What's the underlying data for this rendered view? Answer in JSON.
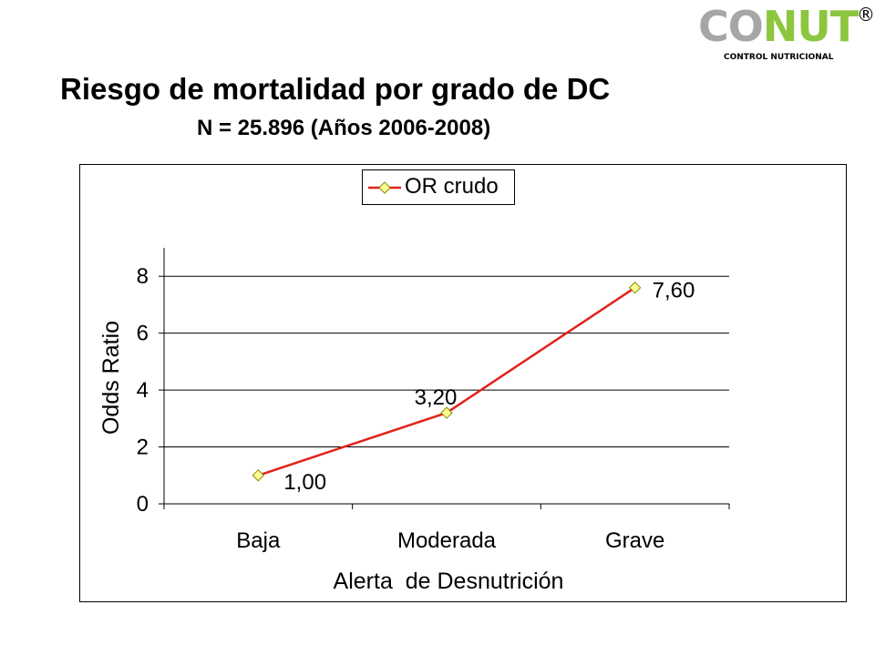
{
  "logo": {
    "word_gray": "CO",
    "word_green": "NUT",
    "registered": "®",
    "subtitle": "CONTROL NUTRICIONAL",
    "color_gray": "#a6a6a6",
    "color_green": "#8cc63f"
  },
  "header": {
    "title": "Riesgo de mortalidad por grado de DC",
    "subtitle": "N = 25.896 (Años 2006-2008)"
  },
  "chart_data": {
    "type": "line",
    "categories": [
      "Baja",
      "Moderada",
      "Grave"
    ],
    "series": [
      {
        "name": "OR crudo",
        "values": [
          1.0,
          3.2,
          7.6
        ],
        "labels": [
          "1,00",
          "3,20",
          "7,60"
        ],
        "color": "#e0221a",
        "marker_fill": "#ffff99",
        "marker_stroke": "#8a8a00"
      }
    ],
    "xlabel": "Alerta  de Desnutrición",
    "ylabel": "Odds Ratio",
    "ylim": [
      0,
      9
    ],
    "yticks": [
      0,
      2,
      4,
      6,
      8
    ],
    "grid": true,
    "legend": "top-center"
  }
}
